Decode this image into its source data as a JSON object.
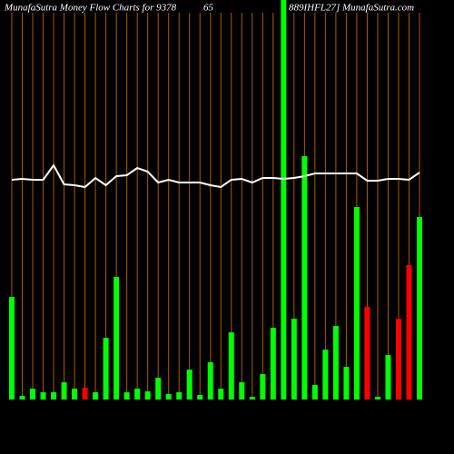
{
  "chart_data": {
    "type": "bar",
    "title": [
      "MunafaSutra  Money Flow  Charts for 9378",
      "65",
      "889IHFL27] MunafaSutra.com"
    ],
    "ylim": [
      0,
      440
    ],
    "grid_color": "#b35900",
    "bars": {
      "values": [
        113,
        4,
        12,
        8,
        8,
        19,
        12,
        13,
        8,
        68,
        135,
        8,
        12,
        9,
        24,
        6,
        8,
        33,
        5,
        41,
        12,
        74,
        19,
        3,
        28,
        79,
        440,
        89,
        268,
        16,
        55,
        81,
        36,
        212,
        102,
        3,
        49,
        89,
        148,
        201
      ],
      "colors": [
        "#00ff00",
        "#00ff00",
        "#00ff00",
        "#00ff00",
        "#00ff00",
        "#00ff00",
        "#00ff00",
        "#ff0000",
        "#00ff00",
        "#00ff00",
        "#00ff00",
        "#00ff00",
        "#00ff00",
        "#00ff00",
        "#00ff00",
        "#00ff00",
        "#00ff00",
        "#00ff00",
        "#00ff00",
        "#00ff00",
        "#00ff00",
        "#00ff00",
        "#00ff00",
        "#00ff00",
        "#00ff00",
        "#00ff00",
        "#00ff00",
        "#00ff00",
        "#00ff00",
        "#00ff00",
        "#00ff00",
        "#00ff00",
        "#00ff00",
        "#00ff00",
        "#ff0000",
        "#00ff00",
        "#00ff00",
        "#ff0000",
        "#ff0000",
        "#00ff00"
      ]
    },
    "line": {
      "color": "#ffffff",
      "values": [
        242,
        243,
        242,
        242,
        258,
        237,
        236,
        234,
        244,
        236,
        246,
        247,
        255,
        251,
        239,
        242,
        239,
        239,
        239,
        236,
        234,
        242,
        243,
        239,
        244,
        244,
        243,
        244,
        246,
        249,
        249,
        249,
        249,
        249,
        241,
        241,
        243,
        243,
        242,
        250
      ]
    }
  }
}
